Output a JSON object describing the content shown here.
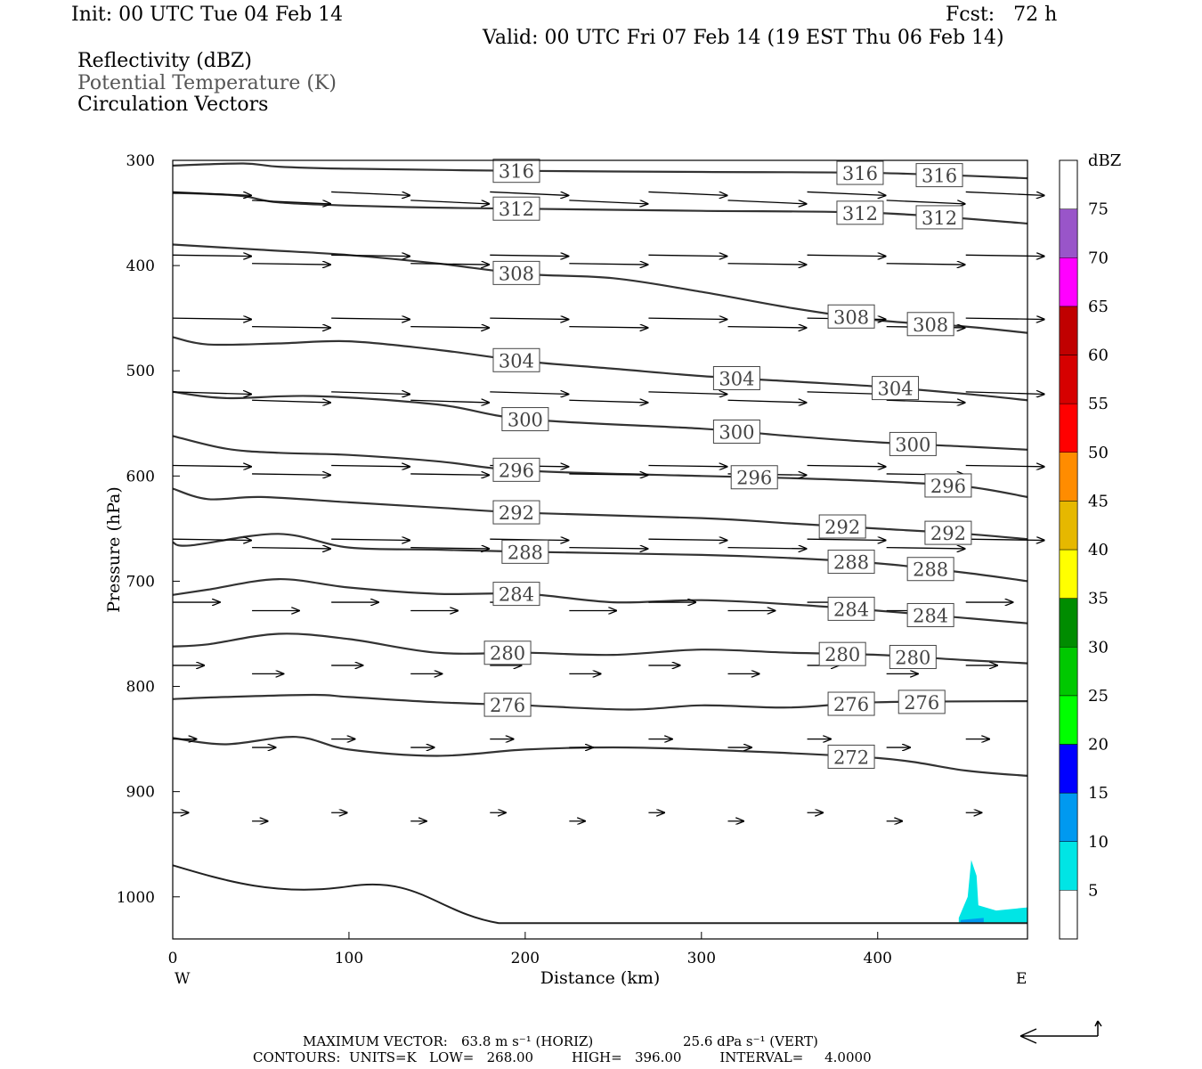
{
  "header": {
    "init": "Init: 00 UTC Tue 04 Feb 14",
    "fcst": "Fcst:   72 h",
    "valid": "Valid: 00 UTC Fri 07 Feb 14 (19 EST Thu 06 Feb 14)"
  },
  "legend_fields": [
    {
      "label": "Reflectivity (dBZ)",
      "color": "#000000"
    },
    {
      "label": "Potential Temperature (K)",
      "color": "#555555"
    },
    {
      "label": "Circulation Vectors",
      "color": "#000000"
    }
  ],
  "chart_data": {
    "type": "line",
    "xlabel": "Distance (km)",
    "ylabel": "Pressure (hPa)",
    "xlim": [
      0,
      485
    ],
    "ylim_pressure": [
      1040,
      300
    ],
    "y_scale": "linear, inverted",
    "x_ticks": [
      0,
      100,
      200,
      300,
      400
    ],
    "y_ticks": [
      300,
      400,
      500,
      600,
      700,
      800,
      900,
      1000
    ],
    "x_end_labels": {
      "left": "W",
      "right": "E"
    },
    "theta_contours": [
      {
        "label": "316",
        "points": [
          [
            0,
            305
          ],
          [
            40,
            303
          ],
          [
            60,
            306
          ],
          [
            100,
            308
          ],
          [
            200,
            310
          ],
          [
            300,
            311
          ],
          [
            400,
            312
          ],
          [
            485,
            317
          ]
        ]
      },
      {
        "label": "312",
        "points": [
          [
            0,
            331
          ],
          [
            20,
            332
          ],
          [
            40,
            334
          ],
          [
            60,
            340
          ],
          [
            100,
            343
          ],
          [
            150,
            345
          ],
          [
            200,
            346
          ],
          [
            300,
            348
          ],
          [
            400,
            350
          ],
          [
            485,
            360
          ]
        ]
      },
      {
        "label": "308",
        "points": [
          [
            0,
            380
          ],
          [
            50,
            385
          ],
          [
            100,
            390
          ],
          [
            150,
            398
          ],
          [
            200,
            408
          ],
          [
            250,
            412
          ],
          [
            300,
            425
          ],
          [
            350,
            440
          ],
          [
            400,
            452
          ],
          [
            450,
            458
          ],
          [
            485,
            464
          ]
        ]
      },
      {
        "label": "304",
        "points": [
          [
            0,
            468
          ],
          [
            20,
            475
          ],
          [
            60,
            474
          ],
          [
            100,
            472
          ],
          [
            150,
            480
          ],
          [
            200,
            491
          ],
          [
            250,
            498
          ],
          [
            300,
            505
          ],
          [
            350,
            510
          ],
          [
            400,
            515
          ],
          [
            450,
            522
          ],
          [
            485,
            528
          ]
        ]
      },
      {
        "label": "300",
        "points": [
          [
            0,
            520
          ],
          [
            30,
            526
          ],
          [
            80,
            524
          ],
          [
            150,
            532
          ],
          [
            200,
            546
          ],
          [
            300,
            555
          ],
          [
            350,
            562
          ],
          [
            400,
            568
          ],
          [
            450,
            572
          ],
          [
            485,
            575
          ]
        ]
      },
      {
        "label": "296",
        "points": [
          [
            0,
            562
          ],
          [
            30,
            574
          ],
          [
            60,
            578
          ],
          [
            100,
            580
          ],
          [
            150,
            586
          ],
          [
            200,
            595
          ],
          [
            300,
            600
          ],
          [
            350,
            602
          ],
          [
            400,
            605
          ],
          [
            450,
            610
          ],
          [
            485,
            620
          ]
        ]
      },
      {
        "label": "292",
        "points": [
          [
            0,
            612
          ],
          [
            20,
            622
          ],
          [
            50,
            620
          ],
          [
            100,
            625
          ],
          [
            150,
            630
          ],
          [
            200,
            635
          ],
          [
            300,
            640
          ],
          [
            350,
            645
          ],
          [
            400,
            650
          ],
          [
            450,
            655
          ],
          [
            485,
            660
          ]
        ]
      },
      {
        "label": "288",
        "points": [
          [
            0,
            663
          ],
          [
            10,
            666
          ],
          [
            60,
            655
          ],
          [
            100,
            668
          ],
          [
            150,
            670
          ],
          [
            200,
            672
          ],
          [
            300,
            675
          ],
          [
            350,
            678
          ],
          [
            400,
            683
          ],
          [
            450,
            692
          ],
          [
            485,
            700
          ]
        ]
      },
      {
        "label": "284",
        "points": [
          [
            0,
            713
          ],
          [
            20,
            708
          ],
          [
            60,
            698
          ],
          [
            100,
            706
          ],
          [
            150,
            712
          ],
          [
            200,
            712
          ],
          [
            250,
            720
          ],
          [
            300,
            718
          ],
          [
            350,
            722
          ],
          [
            400,
            728
          ],
          [
            450,
            735
          ],
          [
            485,
            740
          ]
        ]
      },
      {
        "label": "280",
        "points": [
          [
            0,
            762
          ],
          [
            20,
            760
          ],
          [
            60,
            750
          ],
          [
            100,
            755
          ],
          [
            150,
            768
          ],
          [
            200,
            768
          ],
          [
            250,
            770
          ],
          [
            300,
            765
          ],
          [
            350,
            768
          ],
          [
            400,
            770
          ],
          [
            450,
            775
          ],
          [
            485,
            778
          ]
        ]
      },
      {
        "label": "276",
        "points": [
          [
            0,
            812
          ],
          [
            30,
            810
          ],
          [
            80,
            808
          ],
          [
            100,
            810
          ],
          [
            150,
            815
          ],
          [
            200,
            818
          ],
          [
            260,
            822
          ],
          [
            300,
            818
          ],
          [
            350,
            820
          ],
          [
            400,
            815
          ],
          [
            485,
            814
          ]
        ]
      },
      {
        "label": "272",
        "points": [
          [
            0,
            849
          ],
          [
            30,
            855
          ],
          [
            70,
            848
          ],
          [
            100,
            860
          ],
          [
            150,
            866
          ],
          [
            200,
            860
          ],
          [
            250,
            858
          ],
          [
            300,
            860
          ],
          [
            400,
            868
          ],
          [
            450,
            880
          ],
          [
            485,
            885
          ]
        ]
      }
    ],
    "reflectivity_colorbar": {
      "unit": "dBZ",
      "levels": [
        5,
        10,
        15,
        20,
        25,
        30,
        35,
        40,
        45,
        50,
        55,
        60,
        65,
        70,
        75
      ],
      "colors": [
        "#00e5e5",
        "#0099f0",
        "#0000ff",
        "#00ff00",
        "#00c800",
        "#008c00",
        "#ffff00",
        "#e6b800",
        "#ff8c00",
        "#ff0000",
        "#d60000",
        "#c00000",
        "#ff00ff",
        "#9955c9"
      ]
    },
    "reflectivity_echo": {
      "color": "#00e5e5",
      "x_km": [
        445,
        485
      ],
      "max_pressure_top": 965
    },
    "vectors": [
      {
        "row": 330,
        "dx": 1,
        "dy": 0.15
      },
      {
        "row": 390,
        "dx": 1,
        "dy": 0.05
      },
      {
        "row": 450,
        "dx": 1,
        "dy": 0.05
      },
      {
        "row": 520,
        "dx": 1,
        "dy": 0.1
      },
      {
        "row": 590,
        "dx": 1,
        "dy": 0.05
      },
      {
        "row": 660,
        "dx": 1,
        "dy": 0.05
      },
      {
        "row": 720,
        "dx": 0.6,
        "dy": 0
      },
      {
        "row": 780,
        "dx": 0.4,
        "dy": 0
      },
      {
        "row": 850,
        "dx": 0.3,
        "dy": 0
      },
      {
        "row": 920,
        "dx": 0.2,
        "dy": 0
      }
    ]
  },
  "footer": {
    "line1_label": "MAXIMUM VECTOR:",
    "line1_horiz": "63.8 m s⁻¹ (HORIZ)",
    "line1_vert": "25.6 dPa s⁻¹ (VERT)",
    "line2": "CONTOURS:  UNITS=K   LOW=   268.00         HIGH=   396.00         INTERVAL=     4.0000"
  }
}
